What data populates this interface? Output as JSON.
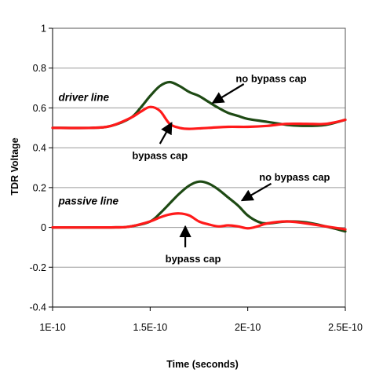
{
  "chart_data": {
    "type": "line",
    "xlabel": "Time (seconds)",
    "ylabel": "TDR Voltage",
    "xlim": [
      1e-10,
      2.5e-10
    ],
    "ylim": [
      -0.4,
      1.0
    ],
    "x_ticks": [
      1e-10,
      1.5e-10,
      2e-10,
      2.5e-10
    ],
    "x_tick_labels": [
      "1E-10",
      "1.5E-10",
      "2E-10",
      "2.5E-10"
    ],
    "y_ticks": [
      -0.4,
      -0.2,
      0,
      0.2,
      0.4,
      0.6,
      0.8,
      1
    ],
    "y_tick_labels": [
      "-0.4",
      "-0.2",
      "0",
      "0.2",
      "0.4",
      "0.6",
      "0.8",
      "1"
    ],
    "grid": "horizontal",
    "colors": {
      "no_bypass": "#1e4a14",
      "bypass": "#ff1a1a",
      "grid": "#9a9a9a"
    },
    "series": [
      {
        "group": "driver line",
        "variant": "no bypass cap",
        "color": "#1e4a14",
        "x": [
          1e-10,
          1.2e-10,
          1.3e-10,
          1.4e-10,
          1.45e-10,
          1.5e-10,
          1.55e-10,
          1.6e-10,
          1.65e-10,
          1.7e-10,
          1.75e-10,
          1.8e-10,
          1.85e-10,
          1.9e-10,
          1.95e-10,
          2e-10,
          2.1e-10,
          2.2e-10,
          2.3e-10,
          2.4e-10,
          2.5e-10
        ],
        "y": [
          0.5,
          0.5,
          0.51,
          0.55,
          0.6,
          0.66,
          0.71,
          0.73,
          0.71,
          0.68,
          0.66,
          0.63,
          0.6,
          0.575,
          0.56,
          0.545,
          0.53,
          0.515,
          0.51,
          0.515,
          0.54
        ]
      },
      {
        "group": "driver line",
        "variant": "bypass cap",
        "color": "#ff1a1a",
        "x": [
          1e-10,
          1.2e-10,
          1.3e-10,
          1.4e-10,
          1.45e-10,
          1.5e-10,
          1.55e-10,
          1.6e-10,
          1.65e-10,
          1.7e-10,
          1.8e-10,
          1.9e-10,
          2e-10,
          2.1e-10,
          2.2e-10,
          2.3e-10,
          2.4e-10,
          2.5e-10
        ],
        "y": [
          0.5,
          0.5,
          0.51,
          0.55,
          0.58,
          0.605,
          0.585,
          0.52,
          0.5,
          0.495,
          0.5,
          0.505,
          0.505,
          0.51,
          0.52,
          0.52,
          0.52,
          0.54
        ]
      },
      {
        "group": "passive line",
        "variant": "no bypass cap",
        "color": "#1e4a14",
        "x": [
          1e-10,
          1.3e-10,
          1.4e-10,
          1.5e-10,
          1.55e-10,
          1.6e-10,
          1.65e-10,
          1.7e-10,
          1.75e-10,
          1.8e-10,
          1.85e-10,
          1.9e-10,
          1.95e-10,
          2e-10,
          2.05e-10,
          2.1e-10,
          2.2e-10,
          2.3e-10,
          2.4e-10,
          2.5e-10
        ],
        "y": [
          0,
          0,
          0.005,
          0.03,
          0.07,
          0.12,
          0.17,
          0.21,
          0.23,
          0.22,
          0.19,
          0.15,
          0.11,
          0.06,
          0.03,
          0.02,
          0.03,
          0.025,
          0.005,
          -0.02
        ]
      },
      {
        "group": "passive line",
        "variant": "bypass cap",
        "color": "#ff1a1a",
        "x": [
          1e-10,
          1.3e-10,
          1.4e-10,
          1.5e-10,
          1.55e-10,
          1.6e-10,
          1.65e-10,
          1.7e-10,
          1.75e-10,
          1.8e-10,
          1.85e-10,
          1.9e-10,
          1.95e-10,
          2e-10,
          2.05e-10,
          2.1e-10,
          2.2e-10,
          2.3e-10,
          2.4e-10,
          2.5e-10
        ],
        "y": [
          0,
          0,
          0.005,
          0.03,
          0.05,
          0.065,
          0.07,
          0.06,
          0.03,
          0.015,
          0.005,
          0.01,
          0.005,
          -0.005,
          0.005,
          0.02,
          0.03,
          0.02,
          0.005,
          -0.01
        ]
      }
    ],
    "annotations": [
      {
        "text": "driver line",
        "style": "italic"
      },
      {
        "text": "no bypass cap",
        "x": 2.12e-10,
        "y": 0.745,
        "arrow_from": [
          1.98e-10,
          0.72
        ],
        "arrow_to": [
          1.82e-10,
          0.625
        ]
      },
      {
        "text": "bypass cap",
        "x": 1.55e-10,
        "y": 0.36,
        "arrow_from": [
          1.55e-10,
          0.42
        ],
        "arrow_to": [
          1.61e-10,
          0.525
        ]
      },
      {
        "text": "passive line",
        "style": "italic"
      },
      {
        "text": "no bypass cap",
        "x": 2.24e-10,
        "y": 0.25,
        "arrow_from": [
          2.12e-10,
          0.22
        ],
        "arrow_to": [
          1.97e-10,
          0.135
        ]
      },
      {
        "text": "bypass cap",
        "x": 1.72e-10,
        "y": -0.16,
        "arrow_from": [
          1.68e-10,
          -0.1
        ],
        "arrow_to": [
          1.68e-10,
          0.005
        ]
      }
    ]
  }
}
